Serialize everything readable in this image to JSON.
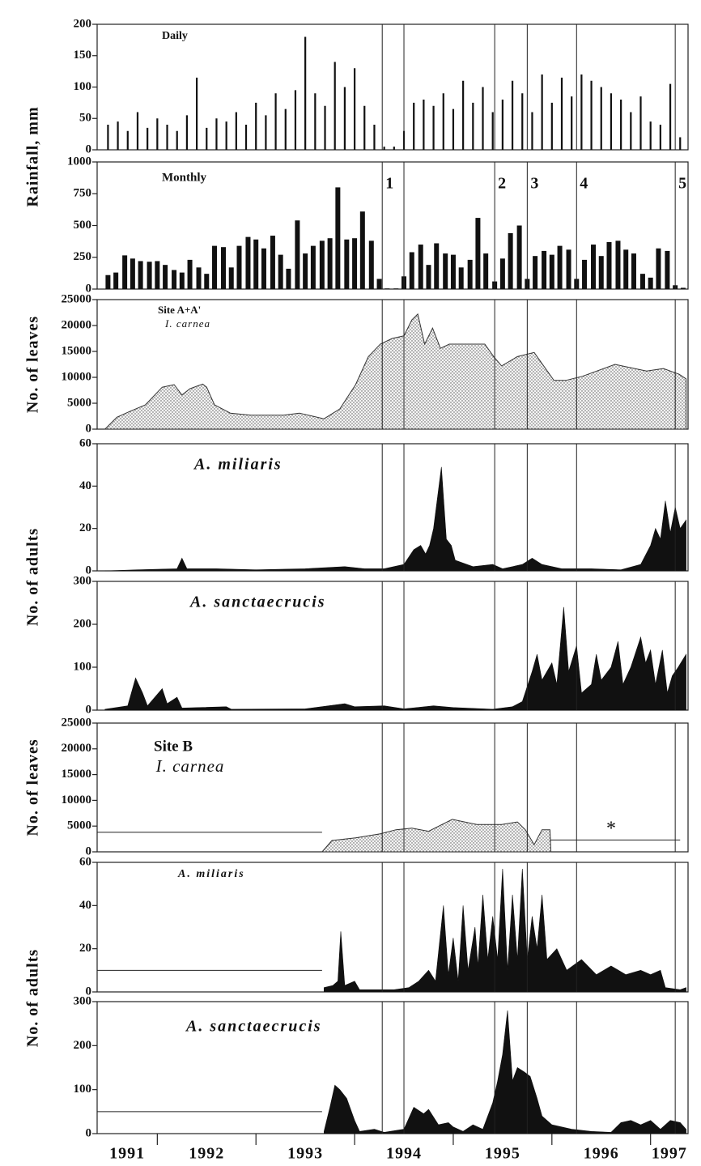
{
  "chart_data": [
    {
      "type": "bar",
      "title": "Daily",
      "ylabel": "Rainfall, mm",
      "color": "#111111",
      "x": [
        1991.5,
        1991.6,
        1991.7,
        1991.8,
        1991.9,
        1992.0,
        1992.1,
        1992.2,
        1992.3,
        1992.4,
        1992.5,
        1992.6,
        1992.7,
        1992.8,
        1992.9,
        1993.0,
        1993.1,
        1993.2,
        1993.3,
        1993.4,
        1993.5,
        1993.6,
        1993.7,
        1993.8,
        1993.9,
        1994.0,
        1994.1,
        1994.2,
        1994.3,
        1994.4,
        1994.5,
        1994.6,
        1994.7,
        1994.8,
        1994.9,
        1995.0,
        1995.1,
        1995.2,
        1995.3,
        1995.4,
        1995.5,
        1995.6,
        1995.7,
        1995.8,
        1995.9,
        1996.0,
        1996.1,
        1996.2,
        1996.3,
        1996.4,
        1996.5,
        1996.6,
        1996.7,
        1996.8,
        1996.9,
        1997.0,
        1997.1,
        1997.2,
        1997.3
      ],
      "values": [
        40,
        45,
        30,
        60,
        35,
        50,
        40,
        30,
        55,
        115,
        35,
        50,
        45,
        60,
        40,
        75,
        55,
        90,
        65,
        95,
        180,
        90,
        70,
        140,
        100,
        130,
        70,
        40,
        5,
        5,
        30,
        75,
        80,
        70,
        90,
        65,
        110,
        75,
        100,
        60,
        80,
        110,
        90,
        60,
        120,
        75,
        115,
        85,
        120,
        110,
        100,
        90,
        80,
        60,
        85,
        45,
        40,
        105,
        20
      ],
      "xlim": [
        1991.39,
        1997.38
      ],
      "ylim": [
        0,
        200
      ],
      "yticks": [
        0,
        50,
        100,
        150,
        200
      ]
    },
    {
      "type": "bar",
      "title": "Monthly",
      "color": "#111111",
      "x": [
        1991.5,
        1991.58,
        1991.67,
        1991.75,
        1991.83,
        1991.92,
        1992.0,
        1992.08,
        1992.17,
        1992.25,
        1992.33,
        1992.42,
        1992.5,
        1992.58,
        1992.67,
        1992.75,
        1992.83,
        1992.92,
        1993.0,
        1993.08,
        1993.17,
        1993.25,
        1993.33,
        1993.42,
        1993.5,
        1993.58,
        1993.67,
        1993.75,
        1993.83,
        1993.92,
        1994.0,
        1994.08,
        1994.17,
        1994.25,
        1994.33,
        1994.42,
        1994.5,
        1994.58,
        1994.67,
        1994.75,
        1994.83,
        1994.92,
        1995.0,
        1995.08,
        1995.17,
        1995.25,
        1995.33,
        1995.42,
        1995.5,
        1995.58,
        1995.67,
        1995.75,
        1995.83,
        1995.92,
        1996.0,
        1996.08,
        1996.17,
        1996.25,
        1996.33,
        1996.42,
        1996.5,
        1996.58,
        1996.67,
        1996.75,
        1996.83,
        1996.92,
        1997.0,
        1997.08,
        1997.17,
        1997.25,
        1997.33
      ],
      "values": [
        110,
        130,
        265,
        240,
        220,
        215,
        220,
        190,
        150,
        130,
        230,
        170,
        120,
        340,
        330,
        170,
        340,
        410,
        390,
        320,
        420,
        270,
        160,
        540,
        280,
        340,
        380,
        400,
        800,
        390,
        400,
        610,
        380,
        80,
        5,
        5,
        100,
        290,
        350,
        190,
        360,
        280,
        270,
        170,
        230,
        560,
        280,
        60,
        240,
        440,
        500,
        80,
        260,
        300,
        270,
        340,
        310,
        80,
        230,
        350,
        260,
        370,
        380,
        310,
        280,
        120,
        90,
        320,
        300,
        30,
        10
      ],
      "xlim": [
        1991.39,
        1997.38
      ],
      "ylim": [
        0,
        1000
      ],
      "yticks": [
        0,
        250,
        500,
        750,
        1000
      ]
    },
    {
      "type": "area",
      "title": "Site A+A'",
      "subtitle": "I. carnea",
      "ylabel": "No. of leaves",
      "color": "#333333",
      "pattern": "dots",
      "x": [
        1991.47,
        1991.59,
        1991.72,
        1991.88,
        1992.05,
        1992.17,
        1992.25,
        1992.33,
        1992.46,
        1992.5,
        1992.58,
        1992.74,
        1992.95,
        1993.28,
        1993.44,
        1993.69,
        1993.85,
        1994.01,
        1994.14,
        1994.26,
        1994.38,
        1994.5,
        1994.58,
        1994.64,
        1994.71,
        1994.79,
        1994.87,
        1994.96,
        1995.32,
        1995.41,
        1995.49,
        1995.65,
        1995.82,
        1996.02,
        1996.14,
        1996.31,
        1996.64,
        1996.96,
        1997.13,
        1997.29,
        1997.36
      ],
      "values": [
        0,
        2300,
        3400,
        4700,
        8100,
        8600,
        6600,
        7800,
        8700,
        8100,
        4700,
        3100,
        2700,
        2700,
        3100,
        2000,
        3900,
        8600,
        14000,
        16400,
        17500,
        18000,
        21100,
        22200,
        16400,
        19500,
        15600,
        16400,
        16400,
        14000,
        12200,
        14000,
        14800,
        9400,
        9400,
        10200,
        12500,
        11200,
        11700,
        10600,
        9700
      ],
      "xlim": [
        1991.39,
        1997.38
      ],
      "ylim": [
        0,
        25000
      ],
      "yticks": [
        0,
        5000,
        10000,
        15000,
        20000,
        25000
      ]
    },
    {
      "type": "area",
      "title": "A. miliaris",
      "ylabel": "No. of adults",
      "color": "#111111",
      "x": [
        1991.47,
        1991.8,
        1992.2,
        1992.25,
        1992.3,
        1992.6,
        1993.0,
        1993.5,
        1993.9,
        1994.1,
        1994.3,
        1994.5,
        1994.6,
        1994.67,
        1994.72,
        1994.76,
        1994.8,
        1994.88,
        1994.93,
        1994.98,
        1995.02,
        1995.2,
        1995.4,
        1995.5,
        1995.7,
        1995.8,
        1995.9,
        1996.1,
        1996.4,
        1996.7,
        1996.9,
        1997.0,
        1997.05,
        1997.1,
        1997.15,
        1997.2,
        1997.25,
        1997.3,
        1997.36
      ],
      "values": [
        0,
        0.5,
        1,
        6,
        1,
        1,
        0.5,
        1,
        2,
        1,
        1,
        3,
        10,
        12,
        8,
        12,
        20,
        49,
        15,
        12,
        5,
        2,
        3,
        1,
        3,
        6,
        3,
        1,
        1,
        0.5,
        3,
        12,
        20,
        15,
        33,
        18,
        30,
        20,
        24
      ],
      "xlim": [
        1991.39,
        1997.38
      ],
      "ylim": [
        0,
        60
      ],
      "yticks": [
        0,
        20,
        40,
        60
      ]
    },
    {
      "type": "area",
      "title": "A. sanctaecrucis",
      "color": "#111111",
      "x": [
        1991.47,
        1991.7,
        1991.78,
        1991.85,
        1991.9,
        1992.05,
        1992.1,
        1992.2,
        1992.25,
        1992.7,
        1992.75,
        1993.5,
        1993.9,
        1994.0,
        1994.3,
        1994.5,
        1994.8,
        1995.0,
        1995.4,
        1995.6,
        1995.7,
        1995.8,
        1995.85,
        1995.9,
        1996.0,
        1996.05,
        1996.12,
        1996.17,
        1996.25,
        1996.3,
        1996.4,
        1996.45,
        1996.5,
        1996.6,
        1996.67,
        1996.72,
        1996.8,
        1996.9,
        1996.95,
        1997.0,
        1997.05,
        1997.12,
        1997.17,
        1997.22,
        1997.28,
        1997.36
      ],
      "values": [
        2,
        10,
        75,
        40,
        10,
        50,
        15,
        30,
        5,
        8,
        2,
        3,
        15,
        8,
        10,
        3,
        10,
        6,
        2,
        8,
        20,
        90,
        130,
        70,
        110,
        60,
        240,
        90,
        150,
        40,
        60,
        130,
        70,
        100,
        160,
        60,
        100,
        170,
        110,
        140,
        60,
        140,
        40,
        80,
        100,
        130
      ],
      "xlim": [
        1991.39,
        1997.38
      ],
      "ylim": [
        0,
        300
      ],
      "yticks": [
        0,
        100,
        200,
        300
      ]
    },
    {
      "type": "area",
      "title": "Site B",
      "subtitle": "I. carnea",
      "ylabel": "No. of leaves",
      "color": "#333333",
      "pattern": "dots",
      "annotation": "*",
      "x": [
        1993.67,
        1993.77,
        1994.01,
        1994.26,
        1994.42,
        1994.58,
        1994.75,
        1994.99,
        1995.24,
        1995.49,
        1995.65,
        1995.73,
        1995.82,
        1995.9,
        1995.98,
        1995.99
      ],
      "values": [
        0,
        2200,
        2700,
        3500,
        4300,
        4600,
        4000,
        6300,
        5300,
        5300,
        5800,
        4300,
        1400,
        4300,
        4300,
        0
      ],
      "ref_lines": [
        {
          "y": 3800,
          "x": [
            1991.39,
            1993.67
          ]
        },
        {
          "y": 2300,
          "x": [
            1995.98,
            1997.3
          ]
        }
      ],
      "xlim": [
        1991.39,
        1997.38
      ],
      "ylim": [
        0,
        25000
      ],
      "yticks": [
        0,
        5000,
        10000,
        15000,
        20000,
        25000
      ]
    },
    {
      "type": "area",
      "title": "A. miliaris",
      "ylabel": "No. of adults",
      "color": "#111111",
      "x": [
        1993.69,
        1993.78,
        1993.83,
        1993.86,
        1993.9,
        1994.0,
        1994.05,
        1994.2,
        1994.4,
        1994.55,
        1994.65,
        1994.75,
        1994.82,
        1994.9,
        1994.95,
        1995.0,
        1995.05,
        1995.1,
        1995.15,
        1995.22,
        1995.25,
        1995.3,
        1995.35,
        1995.4,
        1995.45,
        1995.5,
        1995.55,
        1995.6,
        1995.65,
        1995.7,
        1995.75,
        1995.8,
        1995.85,
        1995.9,
        1995.95,
        1996.05,
        1996.15,
        1996.3,
        1996.45,
        1996.6,
        1996.75,
        1996.9,
        1997.0,
        1997.1,
        1997.15,
        1997.3,
        1997.36
      ],
      "values": [
        2,
        3,
        5,
        28,
        3,
        5,
        1,
        1,
        1,
        2,
        5,
        10,
        5,
        40,
        8,
        25,
        5,
        40,
        10,
        30,
        12,
        45,
        15,
        35,
        15,
        57,
        10,
        45,
        15,
        57,
        15,
        35,
        20,
        45,
        15,
        20,
        10,
        15,
        8,
        12,
        8,
        10,
        8,
        10,
        2,
        1,
        2
      ],
      "ref_lines": [
        {
          "y": 10,
          "x": [
            1991.39,
            1993.67
          ]
        }
      ],
      "xlim": [
        1991.39,
        1997.38
      ],
      "ylim": [
        0,
        60
      ],
      "yticks": [
        0,
        20,
        40,
        60
      ]
    },
    {
      "type": "area",
      "title": "A. sanctaecrucis",
      "color": "#111111",
      "x": [
        1993.69,
        1993.75,
        1993.8,
        1993.85,
        1993.92,
        1994.0,
        1994.05,
        1994.2,
        1994.3,
        1994.5,
        1994.6,
        1994.7,
        1994.75,
        1994.85,
        1994.95,
        1995.0,
        1995.1,
        1995.2,
        1995.3,
        1995.4,
        1995.45,
        1995.5,
        1995.55,
        1995.6,
        1995.65,
        1995.72,
        1995.78,
        1995.85,
        1995.9,
        1996.0,
        1996.2,
        1996.4,
        1996.6,
        1996.7,
        1996.8,
        1996.9,
        1997.0,
        1997.1,
        1997.2,
        1997.3,
        1997.36
      ],
      "values": [
        5,
        60,
        110,
        100,
        80,
        30,
        5,
        10,
        3,
        10,
        60,
        45,
        55,
        20,
        25,
        15,
        5,
        20,
        10,
        70,
        120,
        180,
        280,
        120,
        150,
        140,
        130,
        80,
        40,
        20,
        10,
        5,
        3,
        25,
        30,
        20,
        30,
        10,
        30,
        25,
        10
      ],
      "ref_lines": [
        {
          "y": 50,
          "x": [
            1991.39,
            1993.67
          ]
        }
      ],
      "xlim": [
        1991.39,
        1997.38
      ],
      "ylim": [
        0,
        300
      ],
      "yticks": [
        0,
        100,
        200,
        300
      ],
      "xticks": [
        1991,
        1992,
        1993,
        1994,
        1995,
        1996,
        1997
      ]
    }
  ],
  "event_lines": [
    {
      "x": 1994.28,
      "label": "1"
    },
    {
      "x": 1994.5
    },
    {
      "x": 1995.42,
      "label": "2"
    },
    {
      "x": 1995.75,
      "label": "3"
    },
    {
      "x": 1996.25,
      "label": "4"
    },
    {
      "x": 1997.25,
      "label": "5"
    }
  ]
}
